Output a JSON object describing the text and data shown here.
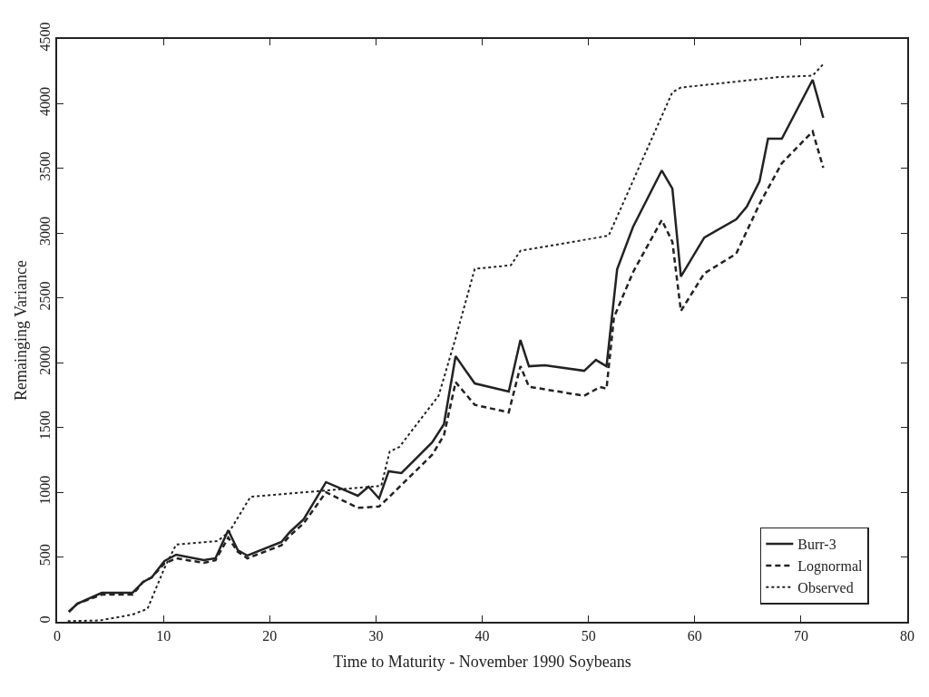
{
  "chart_data": {
    "type": "line",
    "xlabel": "Time to Maturity - November 1990 Soybeans",
    "ylabel": "Remainging Variance",
    "xlim": [
      0,
      80
    ],
    "xticks": [
      0,
      10,
      20,
      30,
      40,
      50,
      60,
      70,
      80
    ],
    "ylim": [
      0,
      4500
    ],
    "yticks": [
      0,
      500,
      1000,
      1500,
      2000,
      2500,
      3000,
      3500,
      4000,
      4500
    ],
    "grid": false,
    "legend": "bottom right",
    "marker": "none",
    "series": [
      {
        "name": "Burr-3",
        "color": "#222222",
        "line_style": "solid",
        "x": [
          1.1,
          1.9,
          4.2,
          7.1,
          8.1,
          8.9,
          10.1,
          11.2,
          13.8,
          14.9,
          16.1,
          17.0,
          17.9,
          21.1,
          21.9,
          23.2,
          25.3,
          28.3,
          29.3,
          30.3,
          31.2,
          32.4,
          35.3,
          36.4,
          37.5,
          39.3,
          42.5,
          43.6,
          44.4,
          45.9,
          49.6,
          50.7,
          51.7,
          52.7,
          54.2,
          56.9,
          57.9,
          58.7,
          60.9,
          63.9,
          64.9,
          66.1,
          66.9,
          68.2,
          71.1,
          72.1
        ],
        "values": [
          77,
          140,
          224,
          224,
          308,
          343,
          469,
          518,
          476,
          490,
          707,
          553,
          511,
          616,
          693,
          791,
          1078,
          973,
          1043,
          952,
          1162,
          1148,
          1386,
          1526,
          2050,
          1840,
          1778,
          2176,
          1973,
          1980,
          1938,
          2022,
          1973,
          2722,
          3050,
          3485,
          3345,
          2666,
          2967,
          3107,
          3205,
          3401,
          3730,
          3730,
          4185,
          3891
        ]
      },
      {
        "name": "Lognormal",
        "color": "#222222",
        "line_style": "dashed",
        "x": [
          1.1,
          1.9,
          4.2,
          7.1,
          8.1,
          8.9,
          10.1,
          11.2,
          13.8,
          14.9,
          16.1,
          17.0,
          17.9,
          21.1,
          21.9,
          23.2,
          25.3,
          28.3,
          30.3,
          31.2,
          35.3,
          36.4,
          37.5,
          39.3,
          42.5,
          43.6,
          44.4,
          49.6,
          51.1,
          51.7,
          52.4,
          54.2,
          56.9,
          57.9,
          58.7,
          60.9,
          63.9,
          66.1,
          68.2,
          71.1,
          72.1
        ],
        "values": [
          77,
          140,
          210,
          210,
          308,
          343,
          450,
          490,
          455,
          475,
          650,
          540,
          490,
          590,
          665,
          760,
          1000,
          880,
          890,
          960,
          1290,
          1440,
          1850,
          1675,
          1617,
          1973,
          1815,
          1745,
          1813,
          1800,
          2350,
          2700,
          3102,
          2934,
          2400,
          2690,
          2841,
          3226,
          3541,
          3786,
          3506
        ]
      },
      {
        "name": "Observed",
        "color": "#222222",
        "line_style": "dotted",
        "x": [
          1,
          4,
          7.1,
          8.5,
          10.1,
          11.2,
          15.1,
          16.2,
          18.2,
          30.5,
          31.3,
          32.2,
          34.5,
          35.9,
          37.5,
          39.3,
          42.7,
          43.6,
          51.9,
          57.9,
          58.7,
          67.9,
          71.1,
          72.1
        ],
        "values": [
          5,
          10,
          56,
          100,
          415,
          597,
          623,
          695,
          966,
          1050,
          1315,
          1349,
          1596,
          1745,
          2190,
          2725,
          2753,
          2865,
          2981,
          4089,
          4125,
          4206,
          4217,
          4306
        ]
      }
    ]
  }
}
